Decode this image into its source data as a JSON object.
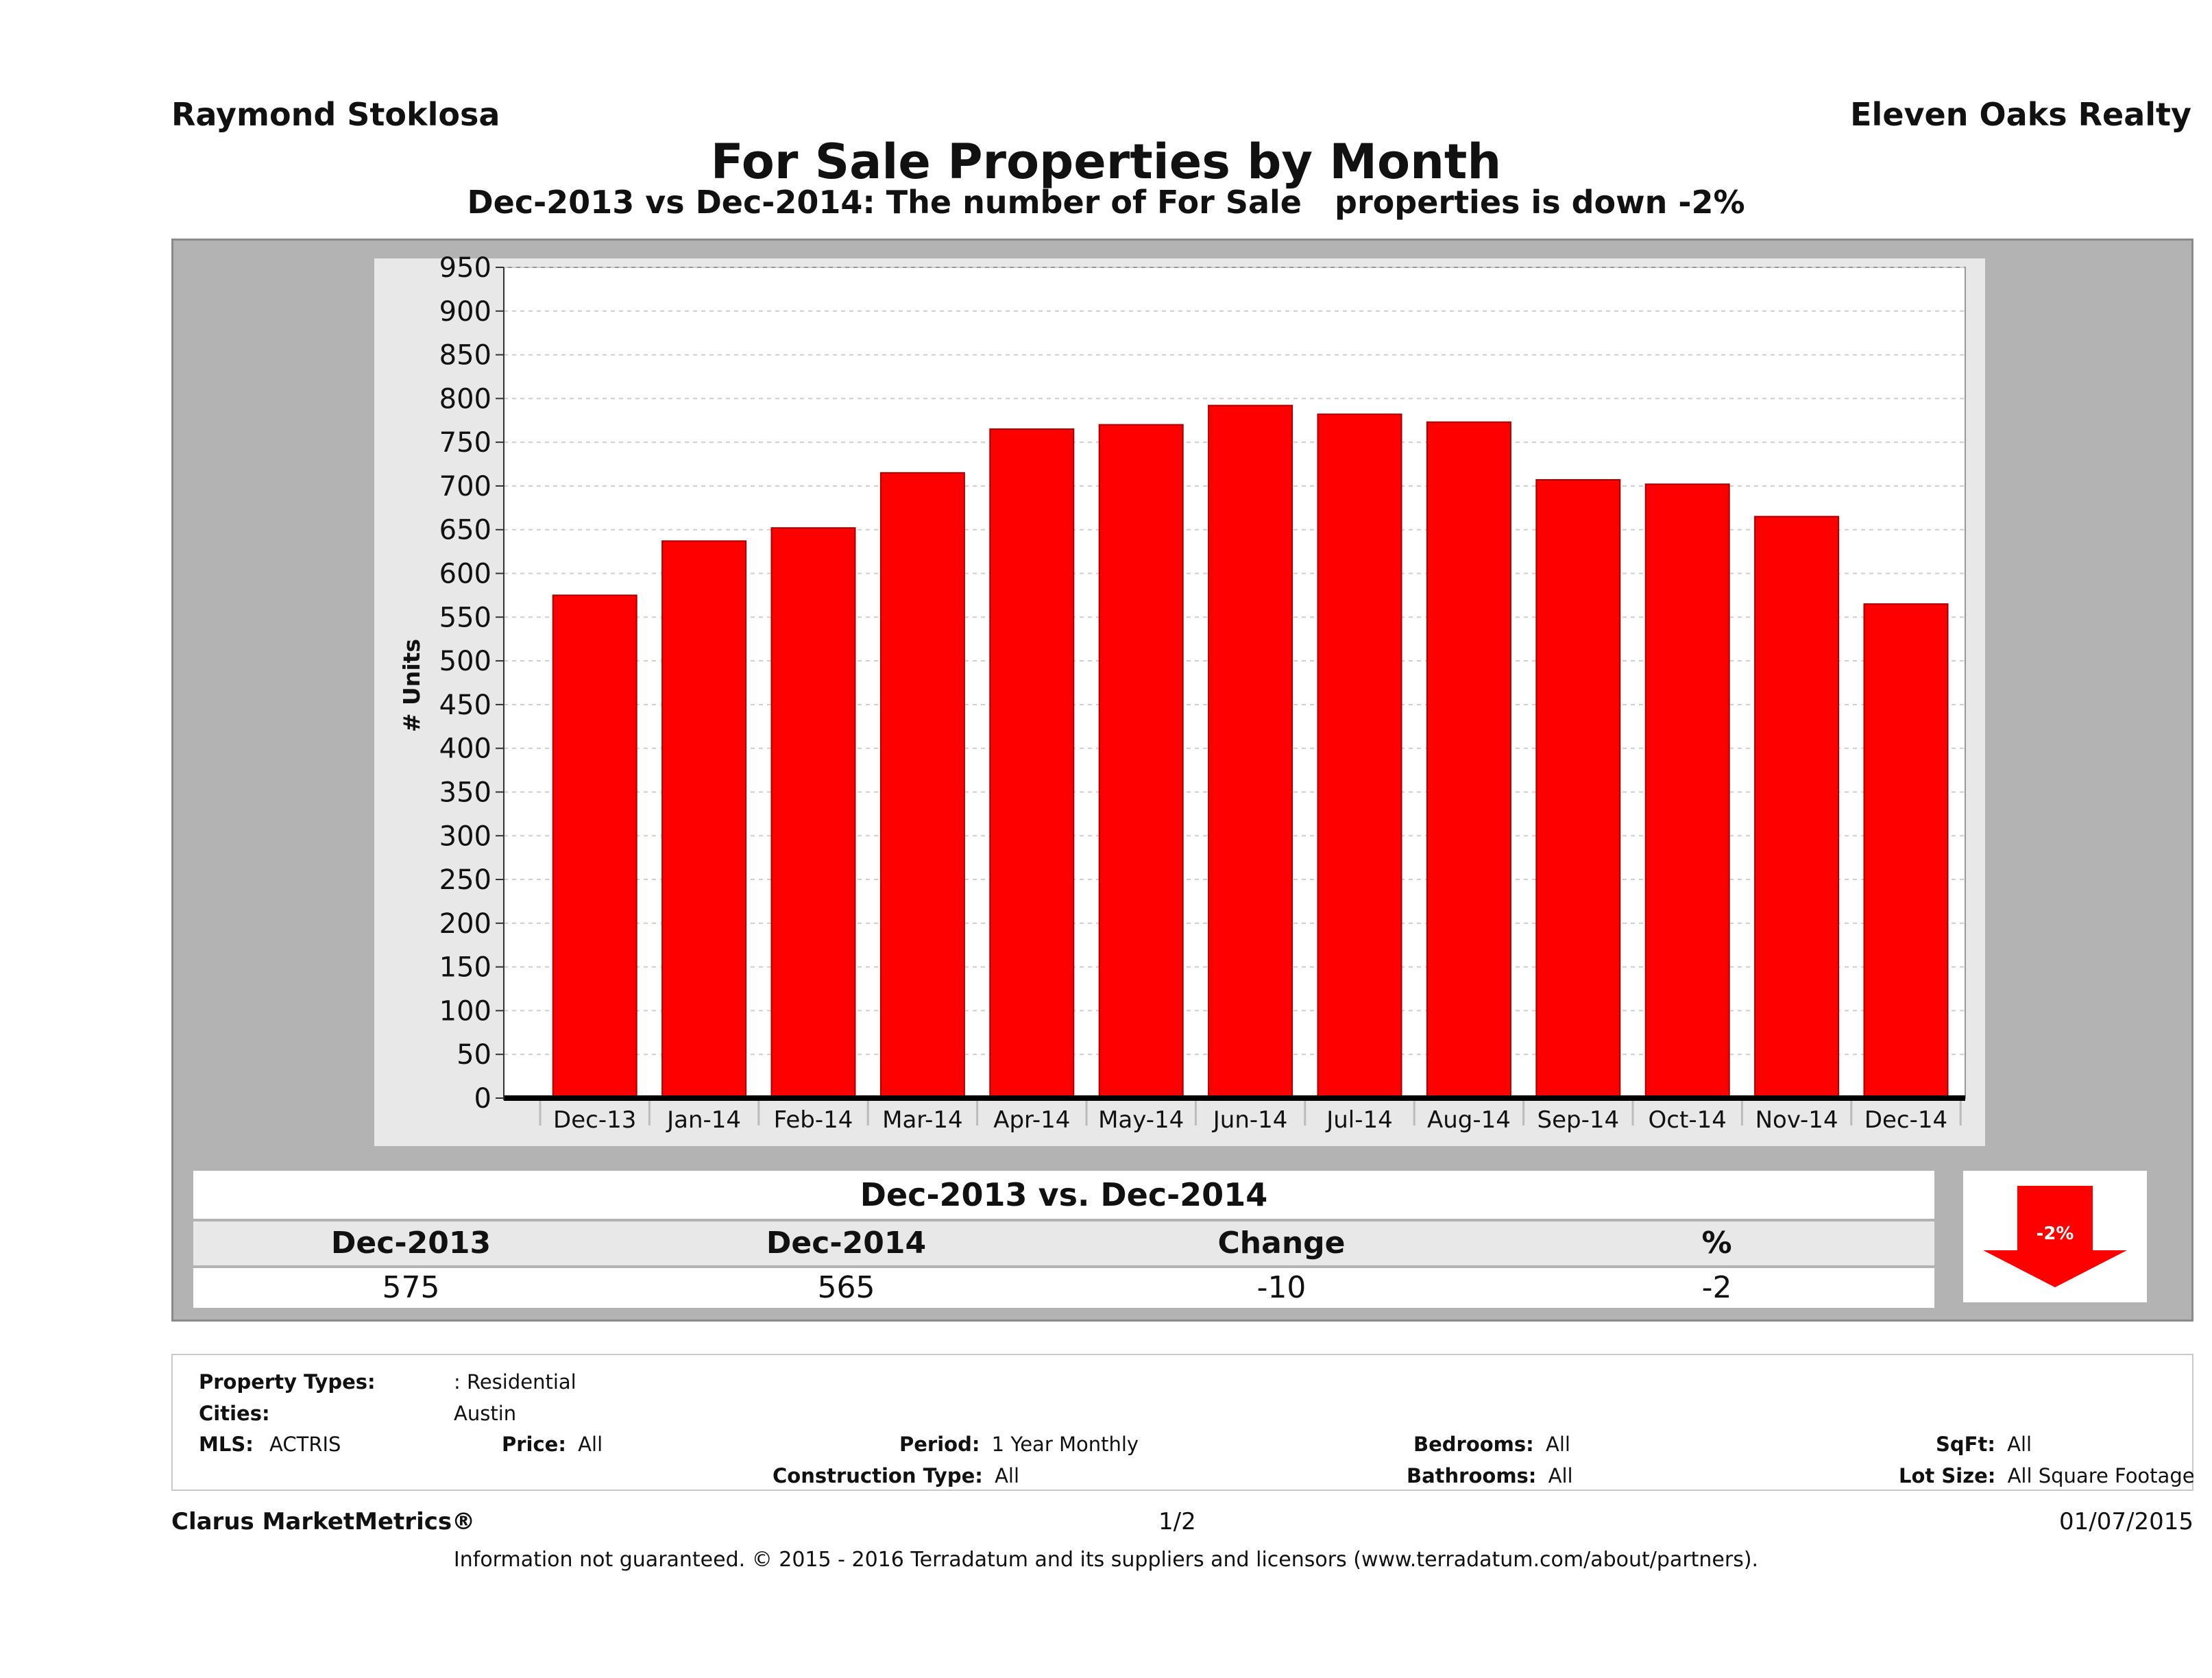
{
  "header": {
    "agent_name": "Raymond Stoklosa",
    "broker_name": "Eleven Oaks Realty",
    "title": "For Sale Properties by Month",
    "subtitle": "Dec-2013 vs Dec-2014: The number of For Sale   properties is down -2%"
  },
  "chart_data": {
    "type": "bar",
    "categories": [
      "Dec-13",
      "Jan-14",
      "Feb-14",
      "Mar-14",
      "Apr-14",
      "May-14",
      "Jun-14",
      "Jul-14",
      "Aug-14",
      "Sep-14",
      "Oct-14",
      "Nov-14",
      "Dec-14"
    ],
    "values": [
      575,
      637,
      652,
      715,
      765,
      770,
      792,
      782,
      773,
      707,
      702,
      665,
      565
    ],
    "ylabel": "# Units",
    "ylim": [
      0,
      950
    ],
    "yticks": [
      0,
      50,
      100,
      150,
      200,
      250,
      300,
      350,
      400,
      450,
      500,
      550,
      600,
      650,
      700,
      750,
      800,
      850,
      900,
      950
    ],
    "bar_color": "#fe0000",
    "grid": true
  },
  "summary": {
    "title": "Dec-2013 vs. Dec-2014",
    "headers": [
      "Dec-2013",
      "Dec-2014",
      "Change",
      "%"
    ],
    "values": [
      "575",
      "565",
      "-10",
      "-2"
    ],
    "badge": "-2%",
    "badge_color": "#fe0000",
    "badge_direction": "down"
  },
  "criteria": {
    "property_types_label": "Property Types:",
    "property_types_value": ": Residential",
    "cities_label": "Cities:",
    "cities_value": "Austin",
    "mls_label": "MLS:",
    "mls_value": "ACTRIS",
    "price_label": "Price:",
    "price_value": "All",
    "period_label": "Period:",
    "period_value": "1 Year Monthly",
    "construction_label": "Construction Type:",
    "construction_value": "All",
    "bedrooms_label": "Bedrooms:",
    "bedrooms_value": "All",
    "bathrooms_label": "Bathrooms:",
    "bathrooms_value": "All",
    "sqft_label": "SqFt:",
    "sqft_value": "All",
    "lot_size_label": "Lot Size:",
    "lot_size_value": "All Square Footage"
  },
  "footer": {
    "brand": "Clarus MarketMetrics®",
    "page": "1/2",
    "date": "01/07/2015",
    "disclaimer": "Information not guaranteed. © 2015 - 2016 Terradatum and its suppliers and licensors (www.terradatum.com/about/partners)."
  }
}
